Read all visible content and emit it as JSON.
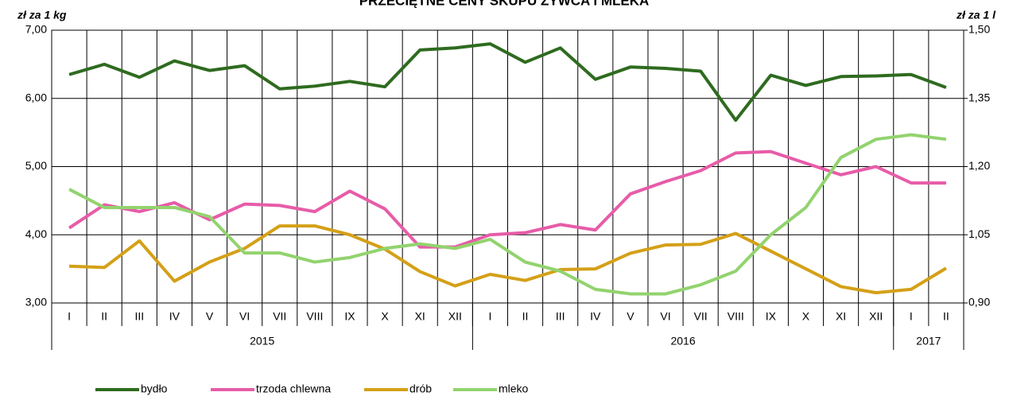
{
  "chart_data": {
    "type": "line",
    "title": "PRZECIĘTNE CENY SKUPU ŻYWCA I MLEKA",
    "y_label": "zł za 1 kg",
    "y2_label": "zł za 1 l",
    "categories": [
      "I",
      "II",
      "III",
      "IV",
      "V",
      "VI",
      "VII",
      "VIII",
      "IX",
      "X",
      "XI",
      "XII",
      "I",
      "II",
      "III",
      "IV",
      "V",
      "VI",
      "VII",
      "VIII",
      "IX",
      "X",
      "XI",
      "XII",
      "I",
      "II"
    ],
    "year_groups": [
      {
        "label": "2015",
        "count": 12
      },
      {
        "label": "2016",
        "count": 12
      },
      {
        "label": "2017",
        "count": 2
      }
    ],
    "ylim": [
      3,
      7
    ],
    "yticks": [
      {
        "value": 3,
        "label": "3,00"
      },
      {
        "value": 4,
        "label": "4,00"
      },
      {
        "value": 5,
        "label": "5,00"
      },
      {
        "value": 6,
        "label": "6,00"
      },
      {
        "value": 7,
        "label": "7,00"
      }
    ],
    "y2lim": [
      0.9,
      1.5
    ],
    "y2ticks": [
      {
        "value": 0.9,
        "label": "0,90"
      },
      {
        "value": 1.05,
        "label": "1,05"
      },
      {
        "value": 1.2,
        "label": "1,20"
      },
      {
        "value": 1.35,
        "label": "1,35"
      },
      {
        "value": 1.5,
        "label": "1,50"
      }
    ],
    "grid": true,
    "legend": "bottom",
    "series": [
      {
        "name": "bydło",
        "color": "#2e6b1f",
        "values": [
          6.35,
          6.5,
          6.31,
          6.55,
          6.41,
          6.48,
          6.14,
          6.18,
          6.25,
          6.17,
          6.71,
          6.74,
          6.8,
          6.53,
          6.74,
          6.28,
          6.46,
          6.44,
          6.4,
          5.68,
          6.34,
          6.19,
          6.32,
          6.33,
          6.35,
          6.16
        ]
      },
      {
        "name": "trzoda chlewna",
        "color": "#e75ca8",
        "values": [
          4.1,
          4.44,
          4.34,
          4.47,
          4.22,
          4.45,
          4.43,
          4.34,
          4.64,
          4.38,
          3.82,
          3.82,
          4.0,
          4.03,
          4.15,
          4.07,
          4.6,
          4.78,
          4.94,
          5.2,
          5.22,
          5.05,
          4.88,
          5.0,
          4.76,
          4.76
        ]
      },
      {
        "name": "drób",
        "color": "#d4a017",
        "values": [
          3.54,
          3.52,
          3.91,
          3.32,
          3.6,
          3.8,
          4.13,
          4.13,
          4.0,
          3.79,
          3.46,
          3.25,
          3.42,
          3.33,
          3.49,
          3.5,
          3.73,
          3.85,
          3.86,
          4.02,
          3.76,
          3.5,
          3.24,
          3.15,
          3.2,
          3.51
        ]
      },
      {
        "name": "mleko",
        "color": "#92d36e",
        "axis": "y2",
        "values": [
          1.15,
          1.11,
          1.11,
          1.11,
          1.09,
          1.01,
          1.01,
          0.99,
          1.0,
          1.02,
          1.03,
          1.02,
          1.04,
          0.99,
          0.97,
          0.93,
          0.92,
          0.92,
          0.94,
          0.97,
          1.05,
          1.11,
          1.22,
          1.26,
          1.27,
          1.26
        ]
      }
    ]
  }
}
